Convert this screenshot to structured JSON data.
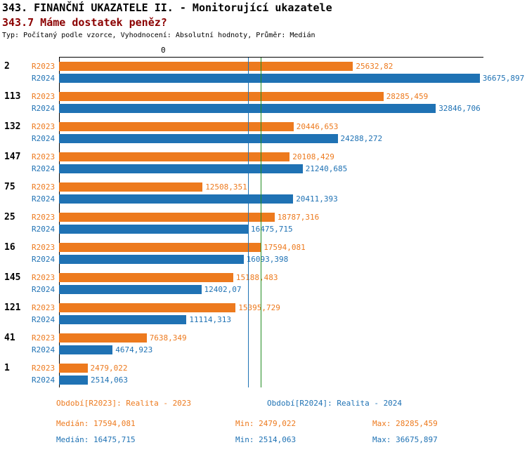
{
  "header": {
    "title1": "343. FINANČNÍ UKAZATELE II. - Monitorující ukazatele",
    "title2": "343.7 Máme dostatek peněz?",
    "subtitle": "Typ: Počítaný podle vzorce, Vyhodnocení: Absolutní hodnoty, Průměr: Medián"
  },
  "colors": {
    "r2023": "#ed7a1e",
    "r2024": "#1f72b4",
    "title2": "#8b0000",
    "median_2023_line": "#228b22",
    "median_2024_line": "#1f72b4",
    "axis": "#000000"
  },
  "axis": {
    "zero_label": "0"
  },
  "chart_data": {
    "type": "bar",
    "orientation": "horizontal",
    "title": "343.7 Máme dostatek peněz?",
    "grid": false,
    "xlim": [
      0,
      37000
    ],
    "categories": [
      "2",
      "113",
      "132",
      "147",
      "75",
      "25",
      "16",
      "145",
      "121",
      "41",
      "1"
    ],
    "series": [
      {
        "name": "R2023",
        "color": "#ed7a1e",
        "values": [
          25632.82,
          28285.459,
          20446.653,
          20108.429,
          12508.351,
          18787.316,
          17594.081,
          15188.483,
          15395.729,
          7638.349,
          2479.022
        ],
        "labels": [
          "25632,82",
          "28285,459",
          "20446,653",
          "20108,429",
          "12508,351",
          "18787,316",
          "17594,081",
          "15188,483",
          "15395,729",
          "7638,349",
          "2479,022"
        ]
      },
      {
        "name": "R2024",
        "color": "#1f72b4",
        "values": [
          36675.897,
          32846.706,
          24288.272,
          21240.685,
          20411.393,
          16475.715,
          16093.398,
          12402.07,
          11114.313,
          4674.923,
          2514.063
        ],
        "labels": [
          "36675,897",
          "32846,706",
          "24288,272",
          "21240,685",
          "20411,393",
          "16475,715",
          "16093,398",
          "12402,07",
          "11114,313",
          "4674,923",
          "2514,063"
        ]
      }
    ],
    "median_lines": [
      {
        "series": "R2023",
        "value": 17594.081,
        "color": "#228b22"
      },
      {
        "series": "R2024",
        "value": 16475.715,
        "color": "#1f72b4"
      }
    ]
  },
  "legend": {
    "period2023": "Období[R2023]: Realita - 2023",
    "period2024": "Období[R2024]: Realita - 2024",
    "stats2023": {
      "median": "Medián: 17594,081",
      "min": "Min: 2479,022",
      "max": "Max: 28285,459"
    },
    "stats2024": {
      "median": "Medián: 16475,715",
      "min": "Min: 2514,063",
      "max": "Max: 36675,897"
    }
  }
}
